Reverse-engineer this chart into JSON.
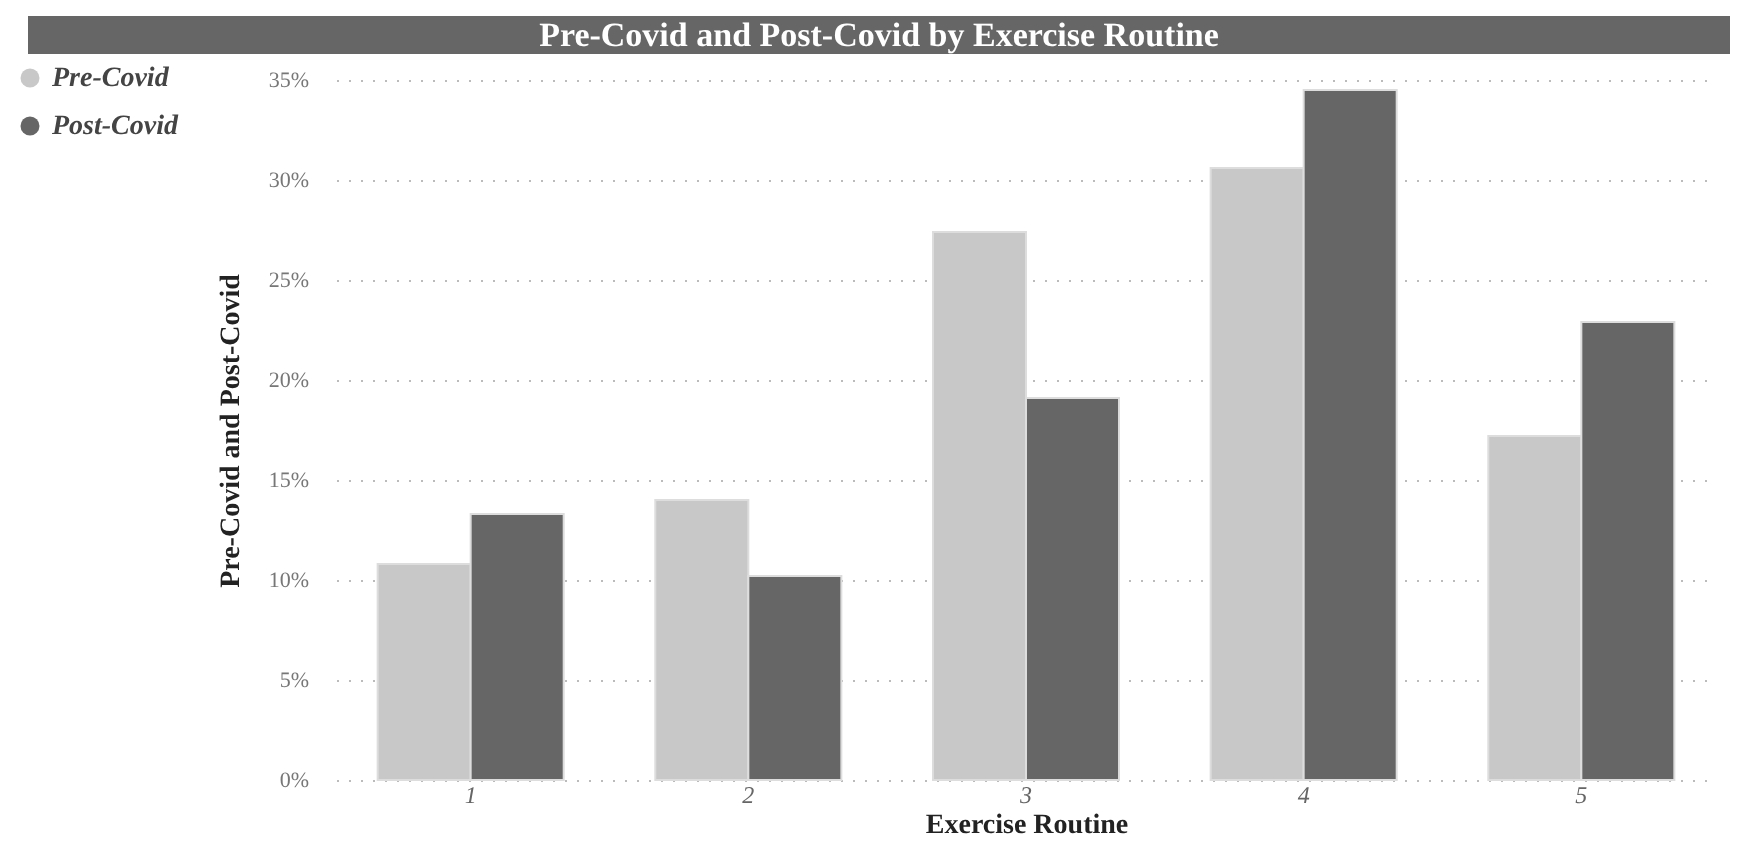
{
  "chart_data": {
    "type": "bar",
    "title": "Pre-Covid and Post-Covid by Exercise Routine",
    "xlabel": "Exercise Routine",
    "ylabel": "Pre-Covid and Post-Covid",
    "categories": [
      "1",
      "2",
      "3",
      "4",
      "5"
    ],
    "series": [
      {
        "name": "Pre-Covid",
        "color": "#c8c8c8",
        "values": [
          10.8,
          14.0,
          27.4,
          30.6,
          17.2
        ]
      },
      {
        "name": "Post-Covid",
        "color": "#666666",
        "values": [
          13.3,
          10.2,
          19.1,
          34.5,
          22.9
        ]
      }
    ],
    "ylim": [
      0,
      35
    ],
    "yticks": [
      {
        "value": 0,
        "label": "0%"
      },
      {
        "value": 5,
        "label": "5%"
      },
      {
        "value": 10,
        "label": "10%"
      },
      {
        "value": 15,
        "label": "15%"
      },
      {
        "value": 20,
        "label": "20%"
      },
      {
        "value": 25,
        "label": "25%"
      },
      {
        "value": 30,
        "label": "30%"
      },
      {
        "value": 35,
        "label": "35%"
      }
    ],
    "grid": "y",
    "legend": "top left"
  }
}
